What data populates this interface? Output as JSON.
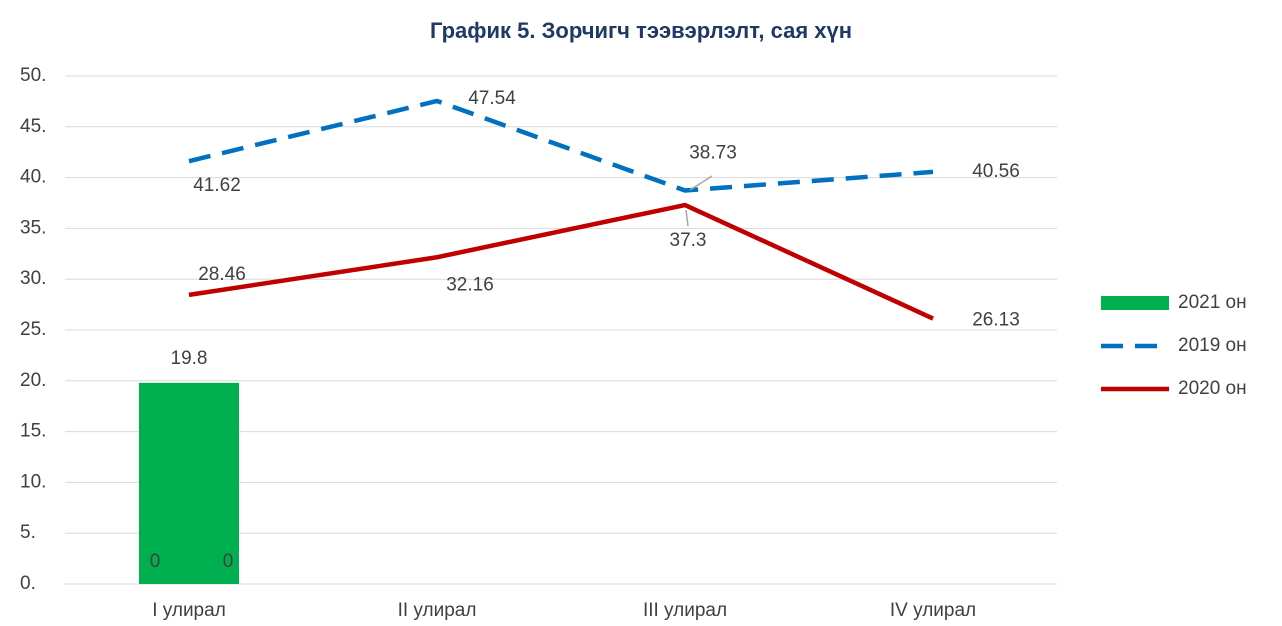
{
  "chart_data": {
    "type": "bar-line",
    "title": "График 5. Зорчигч тээвэрлэлт, сая хүн",
    "categories": [
      "I улирал",
      "II улирал",
      "III улирал",
      "IV улирал"
    ],
    "series": [
      {
        "name": "2021 он",
        "type": "bar",
        "color": "#00b050",
        "values": [
          19.8,
          null,
          null,
          null
        ]
      },
      {
        "name": "2019 он",
        "type": "line",
        "dash": true,
        "color": "#0070c0",
        "values": [
          41.62,
          47.54,
          38.73,
          40.56
        ]
      },
      {
        "name": "2020 он",
        "type": "line",
        "dash": false,
        "color": "#c00000",
        "values": [
          28.46,
          32.16,
          37.3,
          26.13
        ]
      }
    ],
    "annotations": [
      "0",
      "0"
    ],
    "ylim": [
      0,
      50
    ],
    "yticks": [
      {
        "value": 0,
        "label": "0."
      },
      {
        "value": 5,
        "label": "5."
      },
      {
        "value": 10,
        "label": "10."
      },
      {
        "value": 15,
        "label": "15."
      },
      {
        "value": 20,
        "label": "20."
      },
      {
        "value": 25,
        "label": "25."
      },
      {
        "value": 30,
        "label": "30."
      },
      {
        "value": 35,
        "label": "35."
      },
      {
        "value": 40,
        "label": "40."
      },
      {
        "value": 45,
        "label": "45."
      },
      {
        "value": 50,
        "label": "50."
      }
    ],
    "grid": true,
    "legend": "right"
  }
}
